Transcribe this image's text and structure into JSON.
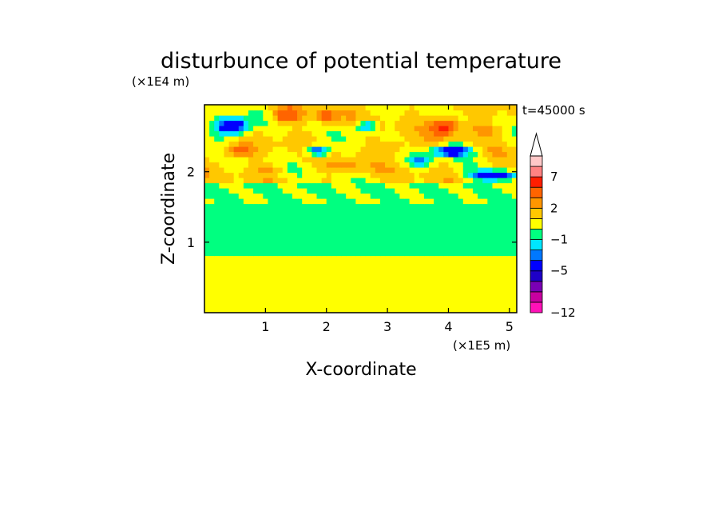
{
  "chart_data": {
    "type": "heatmap",
    "title": "disturbunce of potential temperature",
    "xlabel": "X-coordinate",
    "ylabel": "Z-coordinate",
    "x_unit": "(×1E5 m)",
    "y_unit": "(×1E4 m)",
    "time_label": "t=45000 s",
    "xlim": [
      0,
      5.12
    ],
    "ylim": [
      0,
      2.95
    ],
    "x_ticks": [
      "1",
      "2",
      "3",
      "4",
      "5"
    ],
    "x_tick_values": [
      1,
      2,
      3,
      4,
      5
    ],
    "y_ticks": [
      "1",
      "2"
    ],
    "y_tick_values": [
      1,
      2
    ],
    "colorbar": {
      "levels": [
        -12,
        -10,
        -8,
        -6,
        -5,
        -3,
        -2,
        -1,
        0,
        1,
        2,
        3,
        5,
        7,
        9,
        11
      ],
      "tick_labels": [
        "7",
        "2",
        "−1",
        "−5",
        "−12"
      ],
      "tick_values": [
        7,
        2,
        -1,
        -5,
        -12
      ],
      "colors": [
        "#ff11b8",
        "#c800a0",
        "#7a00b4",
        "#1e00c8",
        "#0000ff",
        "#0078ff",
        "#00e6ff",
        "#00ff80",
        "#ffff00",
        "#ffc800",
        "#ff9600",
        "#ff6400",
        "#ff1e00",
        "#ff8282",
        "#ffc8c8"
      ],
      "extend": "max"
    },
    "dominant_bands": [
      {
        "z_range": [
          0,
          0.8
        ],
        "value": 0.5
      },
      {
        "z_range": [
          0.8,
          1.6
        ],
        "value": -0.5
      },
      {
        "z_range": [
          1.6,
          2.95
        ],
        "value": 1
      }
    ]
  }
}
